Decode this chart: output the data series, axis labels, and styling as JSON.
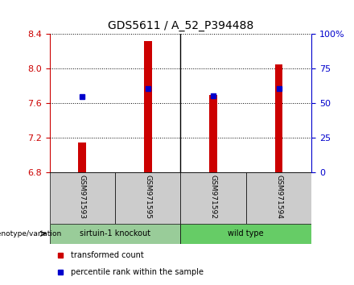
{
  "title": "GDS5611 / A_52_P394488",
  "samples": [
    "GSM971593",
    "GSM971595",
    "GSM971592",
    "GSM971594"
  ],
  "red_values": [
    7.15,
    8.32,
    7.7,
    8.05
  ],
  "blue_values": [
    7.68,
    7.77,
    7.69,
    7.77
  ],
  "ylim_left": [
    6.8,
    8.4
  ],
  "ylim_right": [
    0,
    100
  ],
  "yticks_left": [
    6.8,
    7.2,
    7.6,
    8.0,
    8.4
  ],
  "yticks_right": [
    0,
    25,
    50,
    75,
    100
  ],
  "bar_color": "#CC0000",
  "dot_color": "#0000CC",
  "left_tick_color": "#CC0000",
  "right_tick_color": "#0000CC",
  "title_fontsize": 10,
  "tick_fontsize": 8,
  "grid_color": "#000000",
  "bg_plot": "#ffffff",
  "bg_xlabel": "#cccccc",
  "bg_group1": "#99cc99",
  "bg_group2": "#66cc66",
  "bar_width": 0.12
}
